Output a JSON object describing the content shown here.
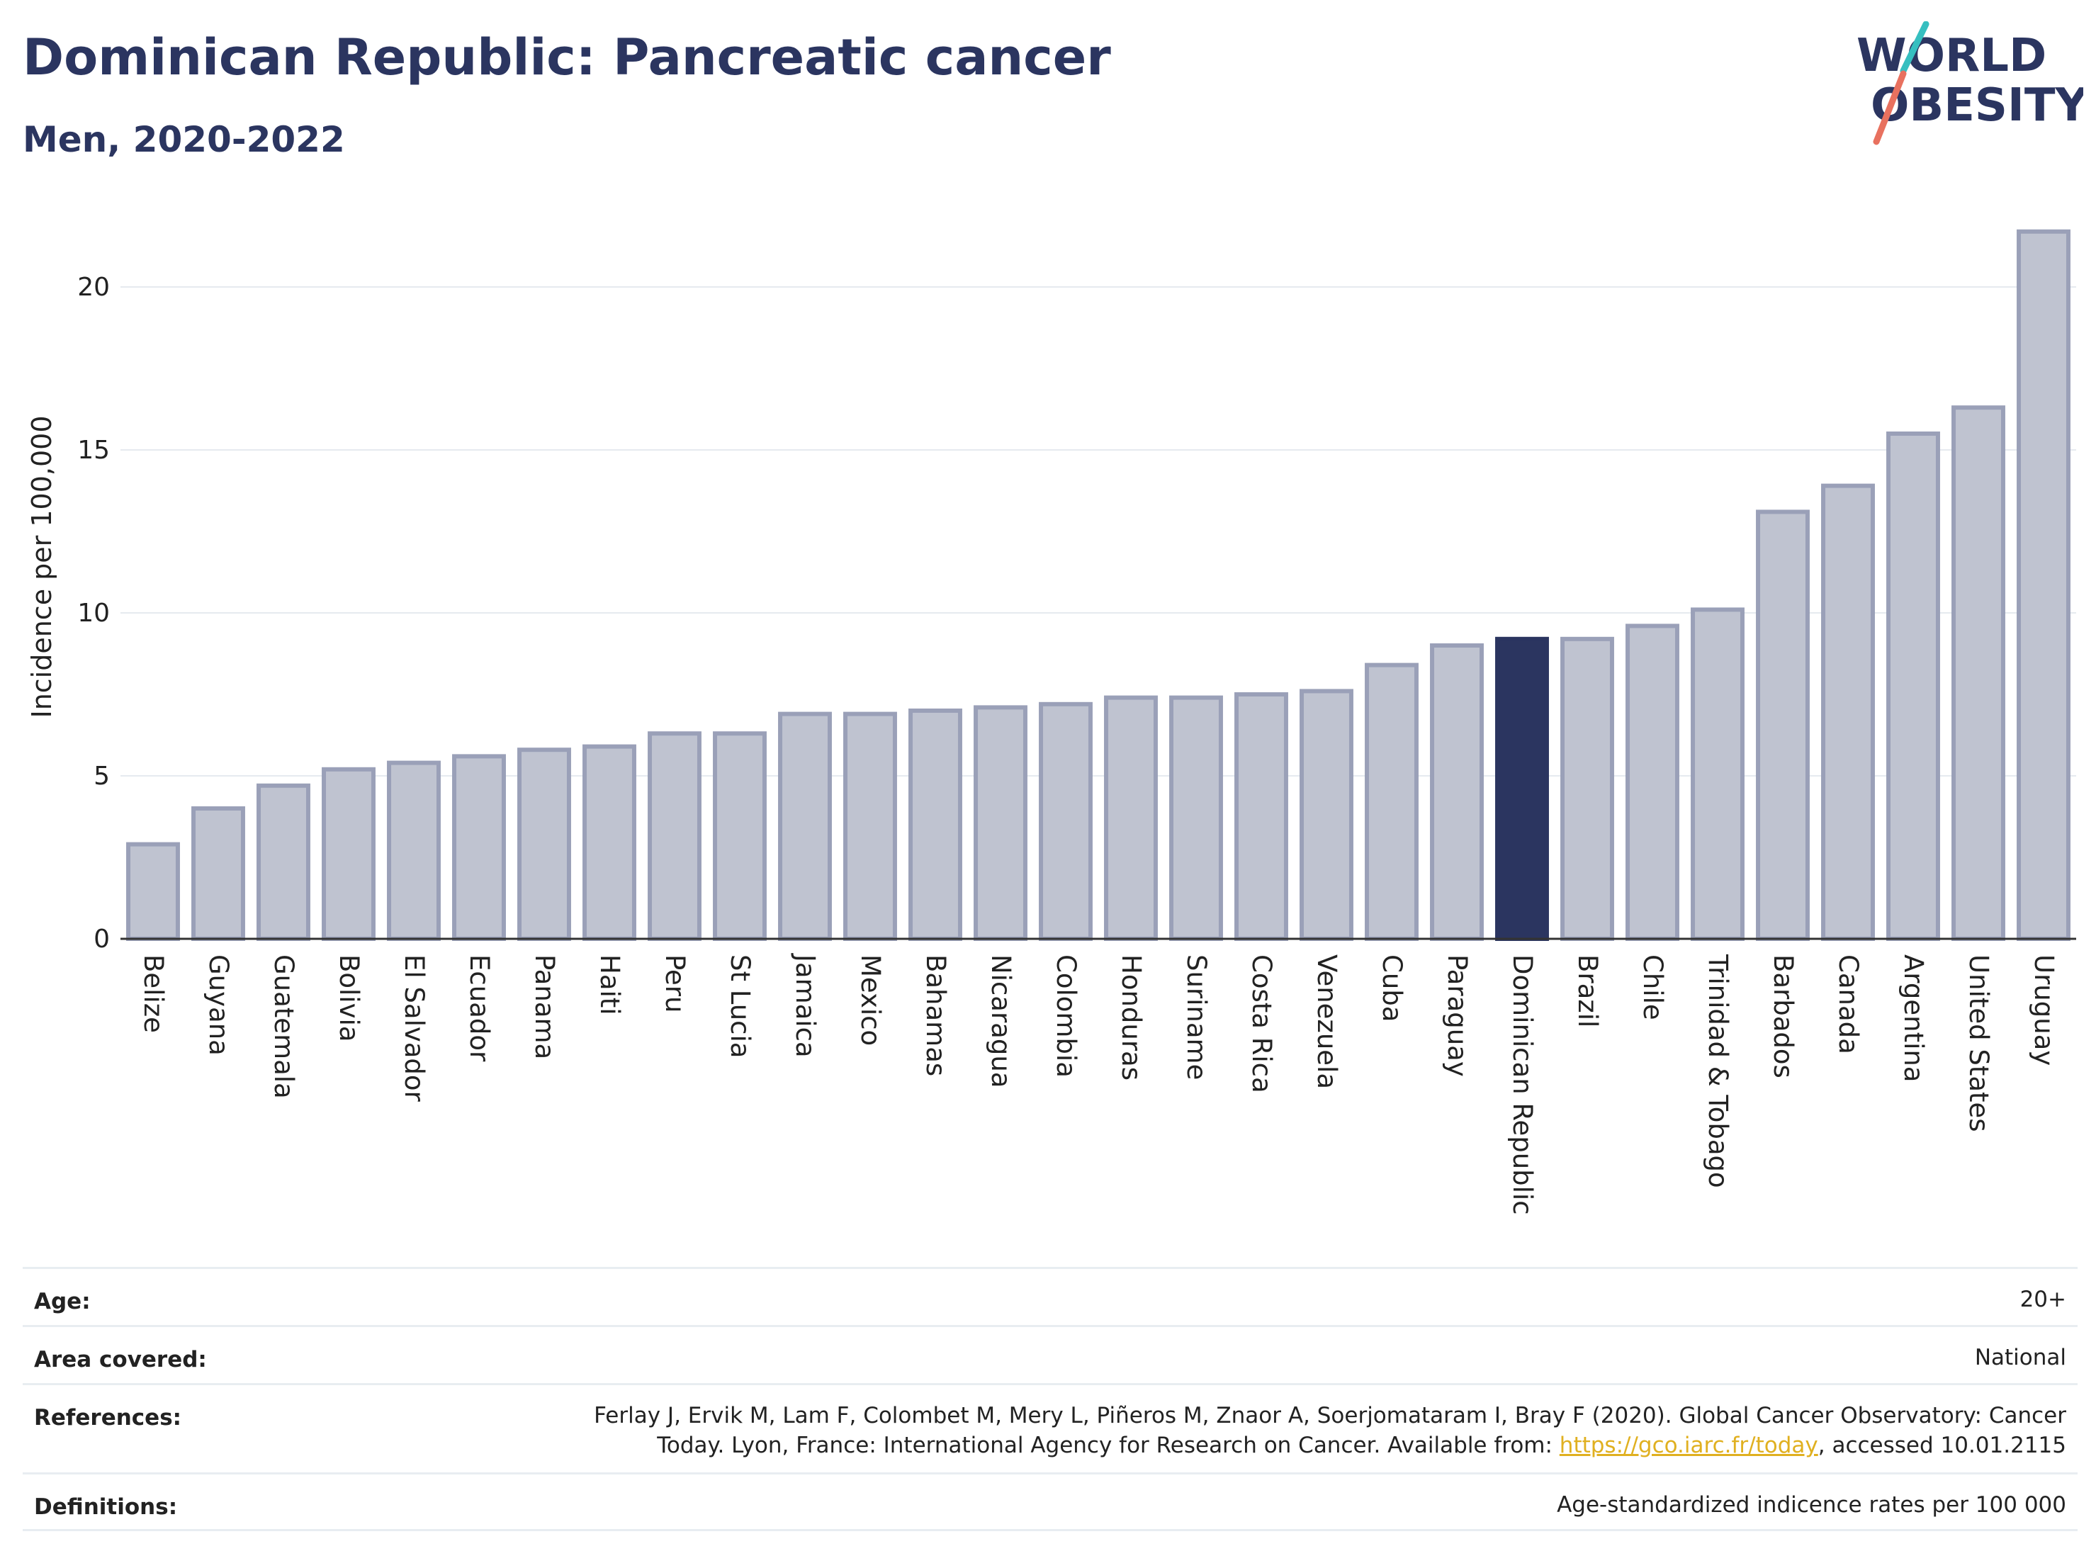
{
  "header": {
    "title": "Dominican Republic: Pancreatic cancer",
    "subtitle": "Men, 2020-2022"
  },
  "logo": {
    "line1": "WORLD",
    "line2": "OBESITY",
    "icon": "world-obesity-logo"
  },
  "colors": {
    "highlight": "#2b3560",
    "bar_fill": "#bfc3d0",
    "bar_stroke": "#9aa0b8",
    "grid": "#e6eaef",
    "accent_teal": "#36bfc0",
    "accent_coral": "#e8715f",
    "link": "#e0b020"
  },
  "chart_data": {
    "type": "bar",
    "ylabel": "Incidence per 100,000",
    "xlabel": "",
    "ylim": [
      0,
      22
    ],
    "yticks": [
      0,
      5,
      10,
      15,
      20
    ],
    "grid": true,
    "highlight": "Dominican Republic",
    "categories": [
      "Belize",
      "Guyana",
      "Guatemala",
      "Bolivia",
      "El Salvador",
      "Ecuador",
      "Panama",
      "Haiti",
      "Peru",
      "St Lucia",
      "Jamaica",
      "Mexico",
      "Bahamas",
      "Nicaragua",
      "Colombia",
      "Honduras",
      "Suriname",
      "Costa Rica",
      "Venezuela",
      "Cuba",
      "Paraguay",
      "Dominican Republic",
      "Brazil",
      "Chile",
      "Trinidad & Tobago",
      "Barbados",
      "Canada",
      "Argentina",
      "United States",
      "Uruguay"
    ],
    "values": [
      2.9,
      4.0,
      4.7,
      5.2,
      5.4,
      5.6,
      5.8,
      5.9,
      6.3,
      6.3,
      6.9,
      6.9,
      7.0,
      7.1,
      7.2,
      7.4,
      7.4,
      7.5,
      7.6,
      8.4,
      9.0,
      9.2,
      9.2,
      9.6,
      10.1,
      13.1,
      13.9,
      15.5,
      16.3,
      21.7
    ]
  },
  "meta": {
    "age_label": "Age:",
    "age_value": "20+",
    "area_label": "Area covered:",
    "area_value": "National",
    "references_label": "References:",
    "references_line1": "Ferlay J, Ervik M, Lam F, Colombet M, Mery L, Piñeros M, Znaor A, Soerjomataram I, Bray F (2020). Global Cancer Observatory: Cancer",
    "references_line2_pre": "Today. Lyon, France: International Agency for Research on Cancer. Available from: ",
    "references_link": "https://gco.iarc.fr/today",
    "references_line2_post": ", accessed 10.01.2115",
    "definitions_label": "Definitions:",
    "definitions_value": "Age-standardized indicence rates per 100 000"
  }
}
